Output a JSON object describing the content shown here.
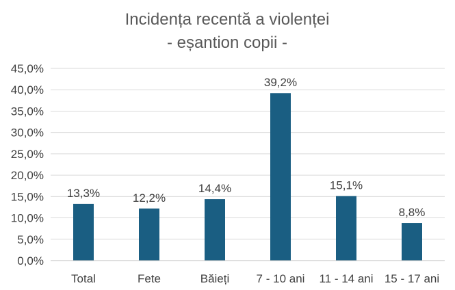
{
  "chart_data": {
    "type": "bar",
    "title_lines": [
      "Incidența recentă a violenței",
      "- eșantion copii -"
    ],
    "categories": [
      "Total",
      "Fete",
      "Băieți",
      "7 - 10 ani",
      "11 - 14 ani",
      "15 - 17 ani"
    ],
    "values": [
      13.3,
      12.2,
      14.4,
      39.2,
      15.1,
      8.8
    ],
    "data_labels": [
      "13,3%",
      "12,2%",
      "14,4%",
      "39,2%",
      "15,1%",
      "8,8%"
    ],
    "y_ticks": [
      0,
      5,
      10,
      15,
      20,
      25,
      30,
      35,
      40,
      45
    ],
    "y_tick_labels": [
      "0,0%",
      "5,0%",
      "10,0%",
      "15,0%",
      "20,0%",
      "25,0%",
      "30,0%",
      "35,0%",
      "40,0%",
      "45,0%"
    ],
    "ylim": [
      0,
      45
    ],
    "grid": true,
    "legend": "none",
    "bar_color": "#1a5e82"
  }
}
